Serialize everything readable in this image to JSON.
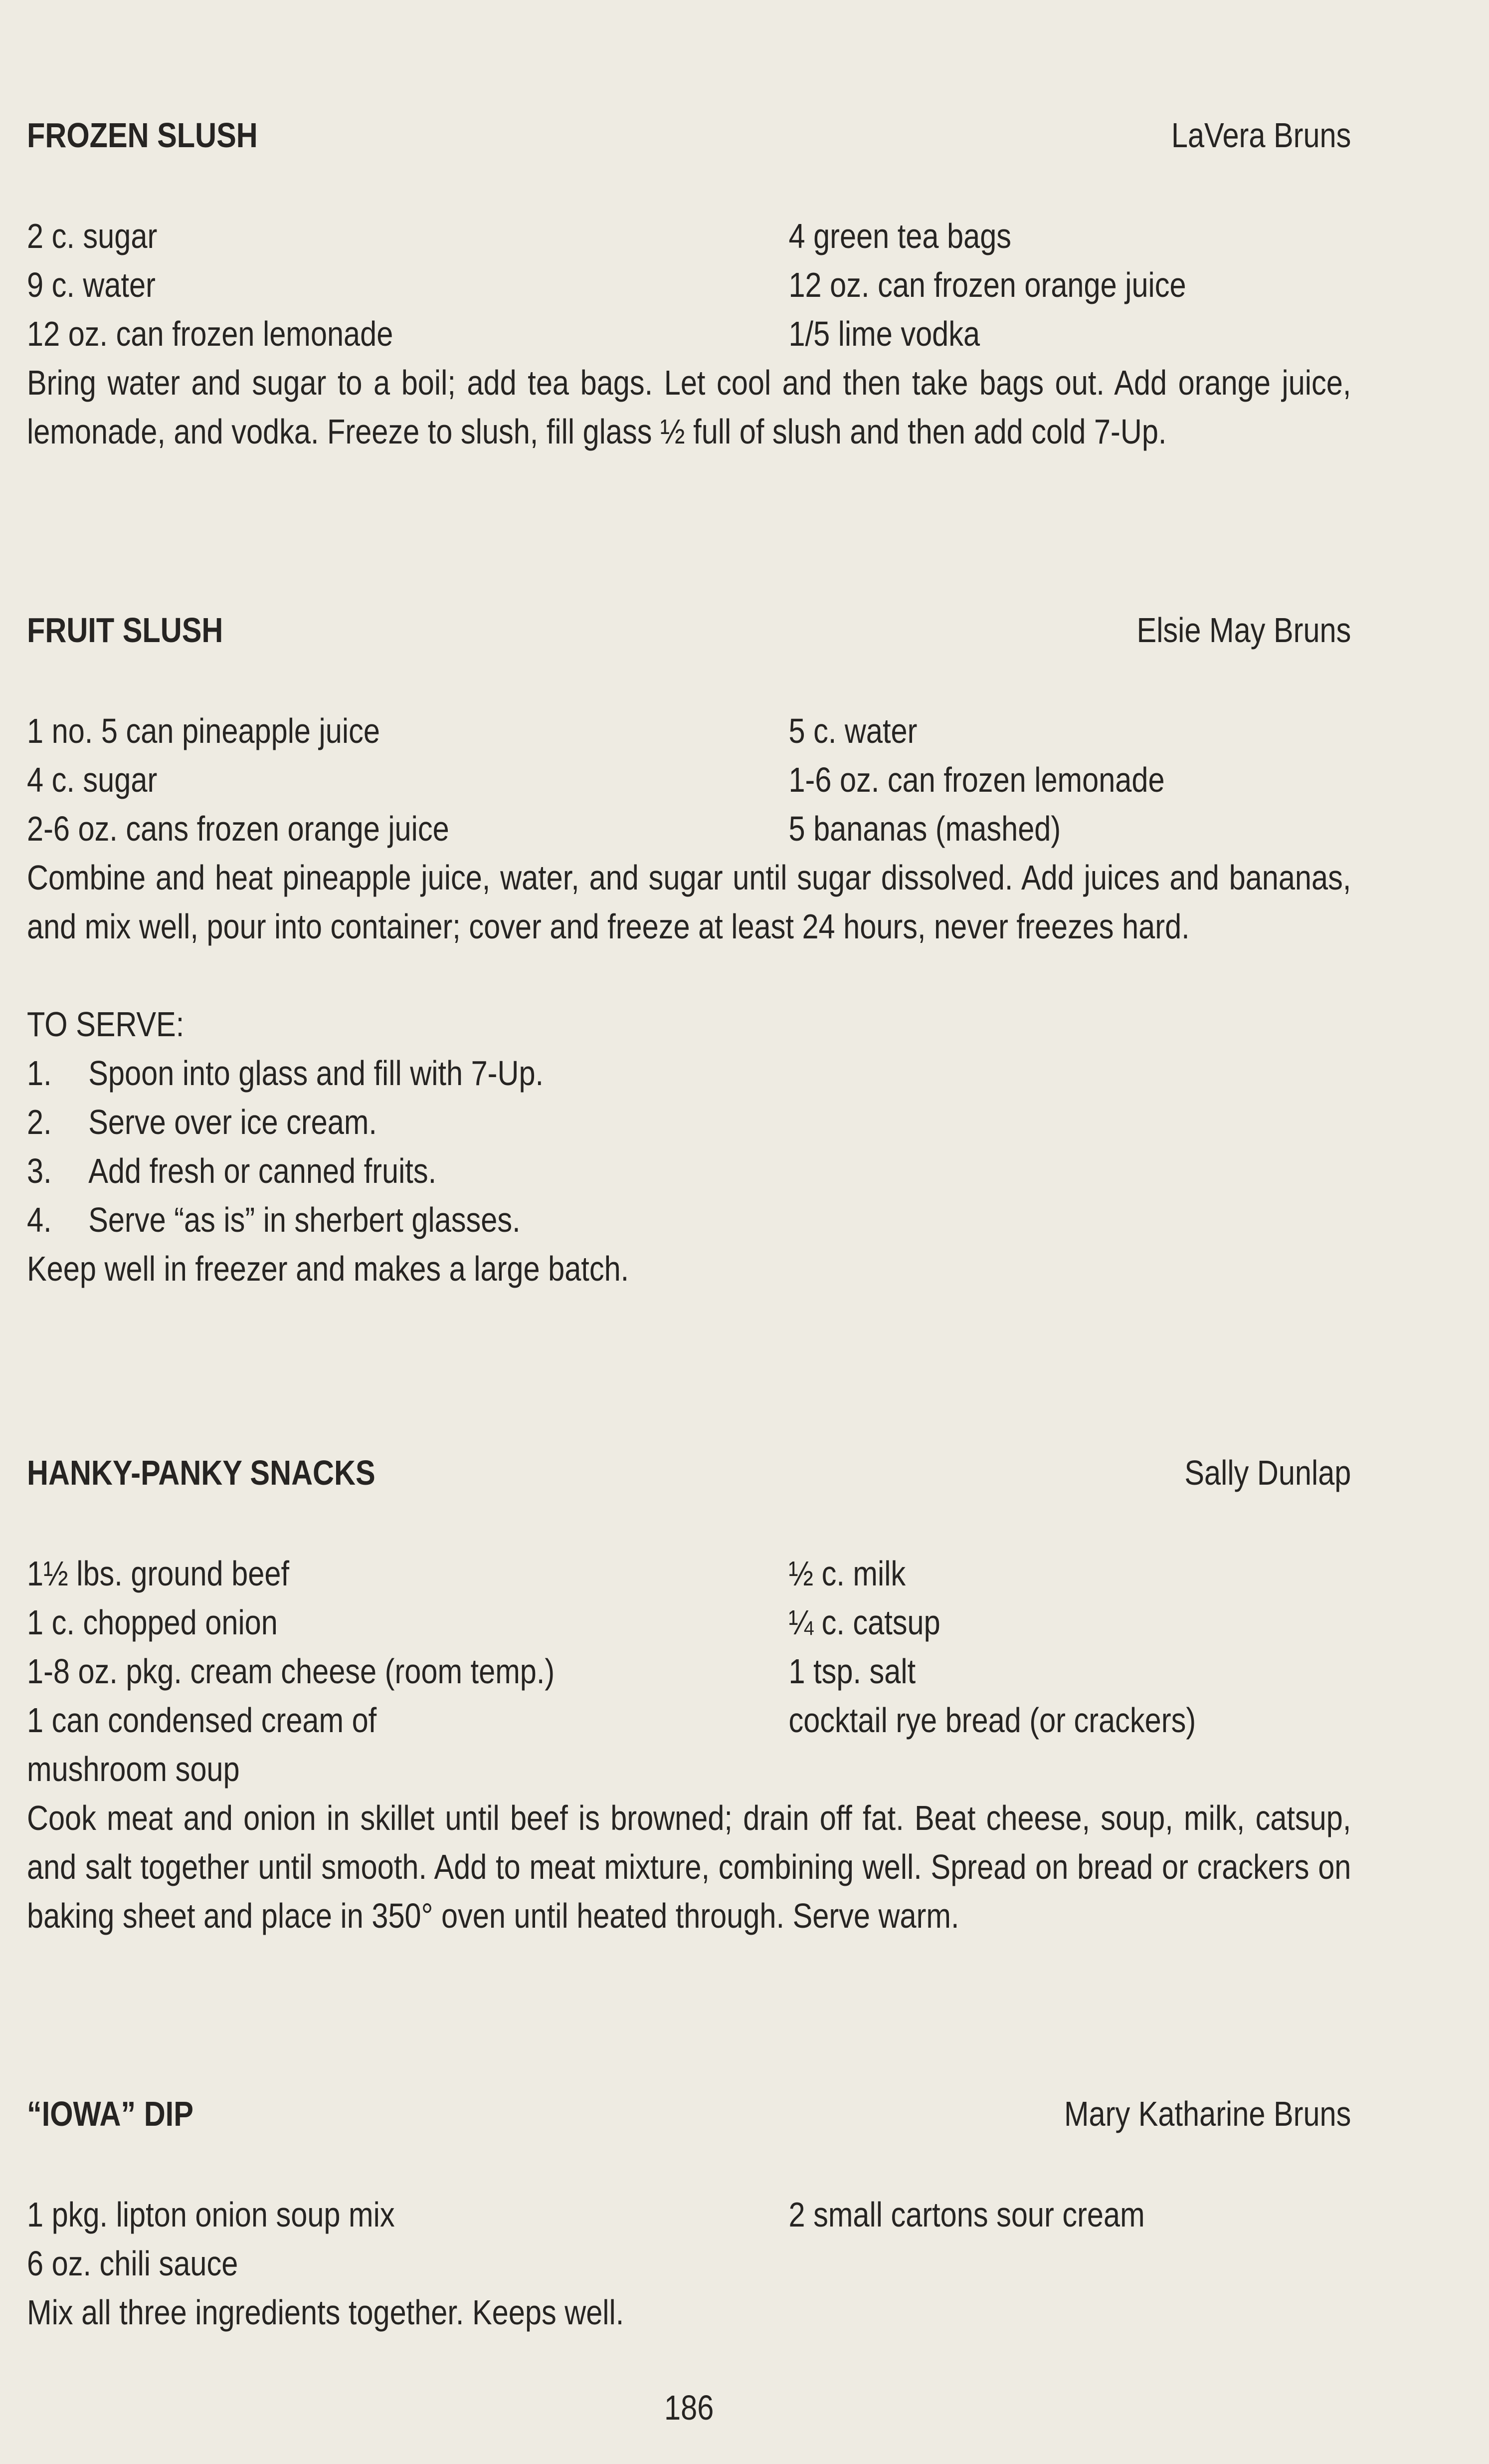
{
  "recipes": [
    {
      "title": "FROZEN SLUSH",
      "author": "LaVera Bruns",
      "ingredients_left": [
        "2 c. sugar",
        "9 c. water",
        "12 oz. can frozen lemonade"
      ],
      "ingredients_right": [
        "4 green tea bags",
        "12 oz. can frozen orange juice",
        "1/5 lime vodka"
      ],
      "directions": "Bring water and sugar to a boil; add tea bags. Let cool and then take bags out. Add orange juice, lemonade, and vodka. Freeze to slush, fill glass ½ full of slush and then add cold 7-Up."
    },
    {
      "title": "FRUIT SLUSH",
      "author": "Elsie May Bruns",
      "ingredients_left": [
        "1 no. 5 can pineapple juice",
        "4 c. sugar",
        "2-6 oz. cans frozen orange juice"
      ],
      "ingredients_right": [
        "5 c. water",
        "1-6 oz. can frozen lemonade",
        "5 bananas (mashed)"
      ],
      "directions": "Combine and heat pineapple juice, water, and sugar until sugar dissolved. Add juices and bananas, and mix well, pour into container; cover and freeze at least 24 hours, never freezes hard.",
      "serving": {
        "heading": "TO SERVE:",
        "steps": [
          {
            "number": "1.",
            "text": "Spoon into glass and fill with 7-Up."
          },
          {
            "number": "2.",
            "text": "Serve over ice cream."
          },
          {
            "number": "3.",
            "text": "Add fresh or canned fruits."
          },
          {
            "number": "4.",
            "text": "Serve “as is” in sherbert glasses."
          }
        ],
        "note": "Keep well in freezer and makes a large batch."
      }
    },
    {
      "title": "HANKY-PANKY SNACKS",
      "author": "Sally Dunlap",
      "ingredients_left": [
        "1½ lbs. ground beef",
        "1 c. chopped onion",
        "1-8 oz. pkg. cream cheese (room temp.)",
        "1 can condensed cream of",
        "mushroom soup"
      ],
      "ingredients_right": [
        "½ c. milk",
        "¼ c. catsup",
        "1 tsp. salt",
        "cocktail rye bread (or crackers)"
      ],
      "directions": "Cook meat and onion in skillet until beef is browned; drain off fat. Beat cheese, soup, milk, catsup, and salt together until smooth. Add to meat mixture, combining well. Spread on bread or crackers on baking sheet and place in 350° oven until heated through. Serve warm."
    },
    {
      "title": "“IOWA” DIP",
      "author": "Mary Katharine Bruns",
      "ingredients_left": [
        "1 pkg. lipton onion soup mix",
        "6 oz. chili sauce"
      ],
      "ingredients_right": [
        "2 small cartons sour cream"
      ],
      "directions": "Mix all three ingredients together. Keeps well."
    }
  ],
  "page_number": "186"
}
